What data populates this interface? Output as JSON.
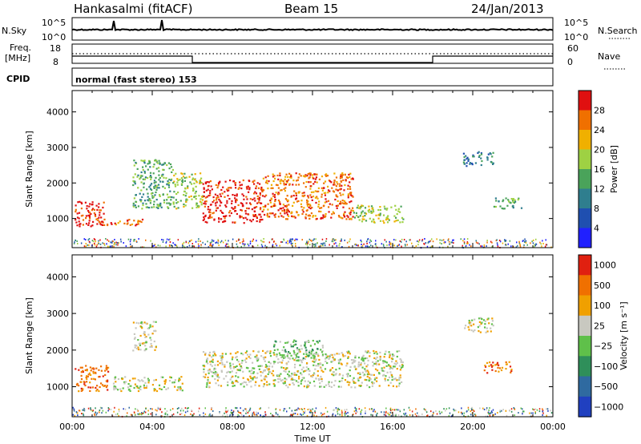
{
  "header": {
    "station": "Hankasalmi (fitACF)",
    "beam": "Beam 15",
    "date": "24/Jan/2013"
  },
  "strips": {
    "nsky_label": "N.Sky",
    "nsky_ticks": [
      "10^5",
      "10^0"
    ],
    "nsearch_label": "N.Search",
    "nsearch_ticks": [
      "10^5",
      "10^0"
    ],
    "freq_label": "Freq.",
    "freq_unit": "[MHz]",
    "freq_ticks": [
      "18",
      "8"
    ],
    "nave_label": "Nave",
    "nave_ticks": [
      "60",
      "0"
    ],
    "cpid_label": "CPID",
    "cpid_text": "normal (fast stereo) 153"
  },
  "chart_data": [
    {
      "type": "heatmap",
      "name": "power",
      "ylabel": "Slant Range [km]",
      "yticks": [
        "1000",
        "2000",
        "3000",
        "4000"
      ],
      "ylim": [
        180,
        4600
      ],
      "xlim": [
        0,
        24
      ],
      "colorbar_label": "Power [dB]",
      "colorbar_ticks": [
        "4",
        "8",
        "12",
        "16",
        "20",
        "24",
        "28"
      ],
      "colorscale": [
        "#2020ff",
        "#1f4fb0",
        "#2f7e8e",
        "#4aa35a",
        "#9ed143",
        "#f0b000",
        "#f07000",
        "#e01010"
      ],
      "scatter_regions": [
        {
          "t": [
            0.1,
            1.6
          ],
          "r": [
            800,
            1500
          ],
          "level": 7
        },
        {
          "t": [
            1.2,
            3.5
          ],
          "r": [
            800,
            1000
          ],
          "level": 6
        },
        {
          "t": [
            3.0,
            5.0
          ],
          "r": [
            1300,
            2700
          ],
          "level": 3
        },
        {
          "t": [
            5.0,
            6.5
          ],
          "r": [
            1300,
            2300
          ],
          "level": 4
        },
        {
          "t": [
            6.5,
            9.5
          ],
          "r": [
            900,
            2100
          ],
          "level": 7
        },
        {
          "t": [
            9.5,
            14.0
          ],
          "r": [
            1000,
            2300
          ],
          "level": 6
        },
        {
          "t": [
            14.0,
            16.5
          ],
          "r": [
            900,
            1400
          ],
          "level": 4
        },
        {
          "t": [
            19.5,
            21.0
          ],
          "r": [
            2500,
            2900
          ],
          "level": 2
        },
        {
          "t": [
            21.0,
            22.5
          ],
          "r": [
            1300,
            1600
          ],
          "level": 3
        }
      ]
    },
    {
      "type": "heatmap",
      "name": "velocity",
      "ylabel": "Slant Range [km]",
      "yticks": [
        "1000",
        "2000",
        "3000",
        "4000"
      ],
      "ylim": [
        180,
        4600
      ],
      "xlim": [
        0,
        24
      ],
      "xlabel": "Time UT",
      "xticks": [
        "00:00",
        "04:00",
        "08:00",
        "12:00",
        "16:00",
        "20:00",
        "00:00"
      ],
      "colorbar_label": "Velocity [m s⁻¹]",
      "colorbar_ticks": [
        "1000",
        "500",
        "100",
        "25",
        "−25",
        "−100",
        "−500",
        "−1000"
      ],
      "colorscale": [
        "#2040c0",
        "#2f6aa0",
        "#2f8f5a",
        "#5fc04a",
        "#c8c8c0",
        "#f0a000",
        "#f07000",
        "#e02010"
      ],
      "scatter_regions": [
        {
          "t": [
            0.1,
            1.8
          ],
          "r": [
            900,
            1600
          ],
          "level": 6
        },
        {
          "t": [
            2.0,
            5.5
          ],
          "r": [
            900,
            1300
          ],
          "level": 4
        },
        {
          "t": [
            3.0,
            4.2
          ],
          "r": [
            2000,
            2800
          ],
          "level": 4
        },
        {
          "t": [
            6.5,
            16.5
          ],
          "r": [
            1000,
            2000
          ],
          "level": 4
        },
        {
          "t": [
            10.0,
            12.5
          ],
          "r": [
            1800,
            2300
          ],
          "level": 3
        },
        {
          "t": [
            20.5,
            22.0
          ],
          "r": [
            1400,
            1700
          ],
          "level": 6
        },
        {
          "t": [
            19.5,
            21.0
          ],
          "r": [
            2500,
            2900
          ],
          "level": 4
        }
      ]
    }
  ]
}
